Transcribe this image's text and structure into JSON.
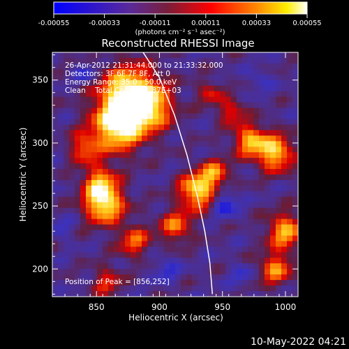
{
  "colorbar": {
    "ticks": [
      "-0.00055",
      "-0.00033",
      "-0.00011",
      "0.00011",
      "0.00033",
      "0.00055"
    ],
    "unit_label": "(photons cm⁻² s⁻¹ asec⁻²)",
    "colors": [
      "#0000ff",
      "#5a2a9a",
      "#7a1e3a",
      "#ff0000",
      "#ff8800",
      "#ffffff"
    ]
  },
  "chart_data": {
    "type": "heatmap",
    "title": "Reconstructed RHESSI Image",
    "xlabel": "Heliocentric X (arcsec)",
    "ylabel": "Heliocentric Y (arcsec)",
    "xlim": [
      815,
      1010
    ],
    "ylim": [
      178,
      372
    ],
    "xticks": [
      850,
      900,
      950,
      1000
    ],
    "yticks": [
      200,
      250,
      300,
      350
    ],
    "limb_curve": [
      [
        887,
        372
      ],
      [
        900,
        352
      ],
      [
        912,
        322
      ],
      [
        922,
        290
      ],
      [
        930,
        258
      ],
      [
        936,
        230
      ],
      [
        940,
        205
      ],
      [
        942,
        180
      ]
    ],
    "hotspots": [
      {
        "x": 875,
        "y": 338,
        "amp": 1.0,
        "r": 16
      },
      {
        "x": 866,
        "y": 312,
        "amp": 0.9,
        "r": 14
      },
      {
        "x": 892,
        "y": 328,
        "amp": 0.7,
        "r": 13
      },
      {
        "x": 856,
        "y": 252,
        "amp": 1.0,
        "r": 11
      },
      {
        "x": 852,
        "y": 270,
        "amp": 0.6,
        "r": 9
      },
      {
        "x": 930,
        "y": 262,
        "amp": 0.9,
        "r": 10
      },
      {
        "x": 944,
        "y": 276,
        "amp": 0.6,
        "r": 8
      },
      {
        "x": 913,
        "y": 234,
        "amp": 0.6,
        "r": 9
      },
      {
        "x": 972,
        "y": 302,
        "amp": 0.75,
        "r": 9
      },
      {
        "x": 992,
        "y": 292,
        "amp": 0.85,
        "r": 10
      },
      {
        "x": 1000,
        "y": 230,
        "amp": 0.75,
        "r": 10
      },
      {
        "x": 992,
        "y": 200,
        "amp": 0.65,
        "r": 9
      },
      {
        "x": 880,
        "y": 222,
        "amp": 0.55,
        "r": 9
      },
      {
        "x": 840,
        "y": 296,
        "amp": 0.55,
        "r": 8
      },
      {
        "x": 957,
        "y": 325,
        "amp": 0.5,
        "r": 7
      },
      {
        "x": 858,
        "y": 190,
        "amp": 0.45,
        "r": 8
      },
      {
        "x": 940,
        "y": 340,
        "amp": 0.4,
        "r": 7
      }
    ],
    "coldspots": [
      {
        "x": 952,
        "y": 252,
        "amp": 0.9,
        "r": 7
      },
      {
        "x": 842,
        "y": 355,
        "amp": 0.6,
        "r": 6
      },
      {
        "x": 905,
        "y": 200,
        "amp": 0.6,
        "r": 7
      },
      {
        "x": 980,
        "y": 350,
        "amp": 0.5,
        "r": 6
      },
      {
        "x": 822,
        "y": 232,
        "amp": 0.5,
        "r": 6
      },
      {
        "x": 965,
        "y": 195,
        "amp": 0.5,
        "r": 6
      }
    ],
    "annotations": {
      "time_range": "26-Apr-2012 21:31:44.000 to 21:33:32.000",
      "detectors": "Detectors: 3F 6F 7F 8F, Att 0",
      "energy": "Energy Range: 35.0 - 50.0 keV",
      "method": "Clean    Total Counts: 1.87E+03",
      "peak": "Position of Peak = [856,252]"
    }
  },
  "footer": {
    "timestamp": "10-May-2022 04:21"
  }
}
